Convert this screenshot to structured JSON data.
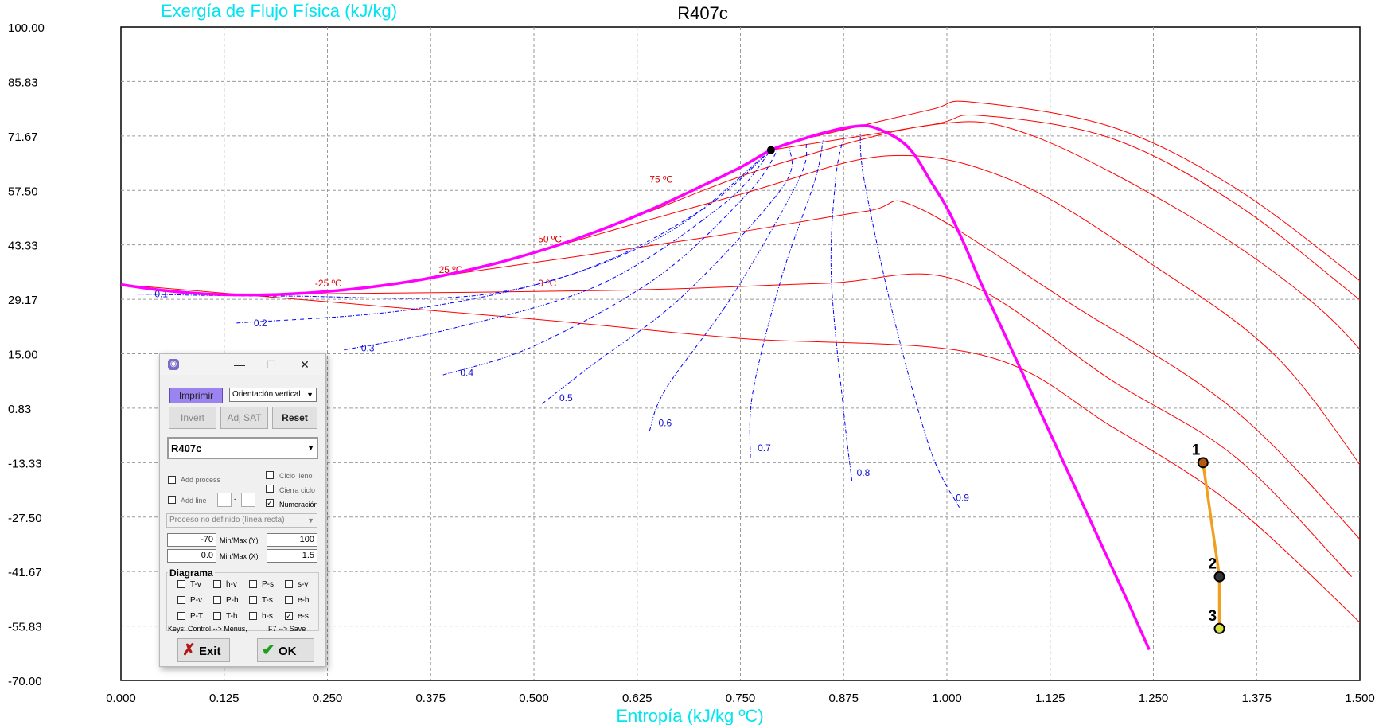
{
  "chart_data": {
    "type": "line",
    "title": "R407c",
    "ylabel": "Exergía de Flujo Física  (kJ/kg)",
    "xlabel": "Entropía (kJ/kg ºC)",
    "xlim": [
      0.0,
      1.5
    ],
    "ylim": [
      -70,
      100
    ],
    "xticks": [
      "0.000",
      "0.125",
      "0.250",
      "0.375",
      "0.500",
      "0.625",
      "0.750",
      "0.875",
      "1.000",
      "1.125",
      "1.250",
      "1.375",
      "1.500"
    ],
    "yticks": [
      "100.00",
      "85.83",
      "71.67",
      "57.50",
      "43.33",
      "29.17",
      "15.00",
      "0.83",
      "-13.33",
      "-27.50",
      "-41.67",
      "-55.83",
      "-70.00"
    ],
    "grid": true,
    "dome_color": "#ff00ff",
    "isotherm_color": "#ff0000",
    "quality_color": "#0000ff",
    "process_color": "#f0a020",
    "saturation_dome": [
      [
        0.0,
        33.0
      ],
      [
        0.05,
        31.5
      ],
      [
        0.1,
        30.6
      ],
      [
        0.15,
        30.3
      ],
      [
        0.2,
        30.5
      ],
      [
        0.25,
        31.2
      ],
      [
        0.3,
        32.3
      ],
      [
        0.35,
        33.8
      ],
      [
        0.4,
        35.8
      ],
      [
        0.45,
        38.3
      ],
      [
        0.5,
        41.3
      ],
      [
        0.55,
        44.8
      ],
      [
        0.6,
        48.8
      ],
      [
        0.65,
        53.3
      ],
      [
        0.7,
        58.3
      ],
      [
        0.75,
        63.5
      ],
      [
        0.787,
        68.0
      ],
      [
        0.82,
        70.5
      ],
      [
        0.86,
        73.0
      ],
      [
        0.89,
        74.2
      ],
      [
        0.91,
        74.0
      ],
      [
        0.94,
        71.0
      ],
      [
        0.96,
        67.0
      ],
      [
        0.98,
        60.0
      ],
      [
        1.0,
        53.0
      ],
      [
        1.02,
        44.0
      ],
      [
        1.04,
        34.0
      ],
      [
        1.07,
        20.0
      ],
      [
        1.1,
        6.0
      ],
      [
        1.13,
        -8.0
      ],
      [
        1.16,
        -22.0
      ],
      [
        1.19,
        -36.0
      ],
      [
        1.22,
        -50.0
      ],
      [
        1.245,
        -62.0
      ]
    ],
    "critical_point": [
      0.787,
      68.0
    ],
    "isotherms": [
      {
        "label": "-25 ºC",
        "label_at": [
          0.235,
          32.5
        ],
        "points": [
          [
            0.0,
            33.0
          ],
          [
            0.5,
            24.0
          ],
          [
            0.75,
            19.0
          ],
          [
            1.04,
            14.8
          ],
          [
            1.2,
            -4
          ],
          [
            1.35,
            -25
          ],
          [
            1.51,
            -57
          ]
        ]
      },
      {
        "label": "0 ºC",
        "label_at": [
          0.505,
          32.5
        ],
        "points": [
          [
            0.2,
            30.5
          ],
          [
            0.6,
            31.5
          ],
          [
            0.85,
            33.3
          ],
          [
            1.015,
            34.0
          ],
          [
            1.2,
            8
          ],
          [
            1.35,
            -12
          ],
          [
            1.49,
            -43
          ]
        ]
      },
      {
        "label": "25 ºC",
        "label_at": [
          0.385,
          36.0
        ],
        "points": [
          [
            0.38,
            35.0
          ],
          [
            0.7,
            45.0
          ],
          [
            0.9,
            52.0
          ],
          [
            0.965,
            53.0
          ],
          [
            1.15,
            28
          ],
          [
            1.35,
            0
          ],
          [
            1.52,
            -38
          ]
        ]
      },
      {
        "label": "50 ºC",
        "label_at": [
          0.505,
          44.0
        ],
        "points": [
          [
            0.5,
            41.3
          ],
          [
            0.75,
            56.5
          ],
          [
            0.93,
            66.5
          ],
          [
            1.08,
            60
          ],
          [
            1.25,
            38
          ],
          [
            1.4,
            14
          ],
          [
            1.52,
            -20
          ]
        ]
      },
      {
        "label": "75 ºC",
        "label_at": [
          0.64,
          59.5
        ],
        "points": [
          [
            0.64,
            52.0
          ],
          [
            0.79,
            64.0
          ],
          [
            0.98,
            74.5
          ],
          [
            1.1,
            72
          ],
          [
            1.3,
            50
          ],
          [
            1.45,
            27
          ],
          [
            1.54,
            6
          ]
        ]
      },
      {
        "label": "",
        "label_at": [
          0.0,
          0.0
        ],
        "points": [
          [
            0.787,
            68.0
          ],
          [
            0.98,
            74.5
          ],
          [
            1.04,
            77.0
          ],
          [
            1.2,
            71
          ],
          [
            1.35,
            54
          ],
          [
            1.5,
            29
          ],
          [
            1.54,
            22
          ]
        ]
      },
      {
        "label": "",
        "label_at": [
          0.0,
          0.0
        ],
        "points": [
          [
            0.84,
            71.5
          ],
          [
            0.98,
            78.5
          ],
          [
            1.03,
            80.5
          ],
          [
            1.2,
            74
          ],
          [
            1.35,
            58
          ],
          [
            1.5,
            34
          ],
          [
            1.54,
            27
          ]
        ]
      }
    ],
    "quality_lines": [
      {
        "label": "0.1",
        "label_at": [
          0.035,
          30.5
        ],
        "points": [
          [
            0.02,
            30.5
          ],
          [
            0.2,
            30.0
          ],
          [
            0.45,
            30.7
          ],
          [
            0.65,
            45
          ],
          [
            0.787,
            68.0
          ]
        ]
      },
      {
        "label": "0.2",
        "label_at": [
          0.155,
          23.0
        ],
        "points": [
          [
            0.14,
            23.0
          ],
          [
            0.35,
            26.5
          ],
          [
            0.55,
            36
          ],
          [
            0.7,
            52
          ],
          [
            0.787,
            68.0
          ]
        ]
      },
      {
        "label": "0.3",
        "label_at": [
          0.285,
          16.5
        ],
        "points": [
          [
            0.27,
            16.0
          ],
          [
            0.4,
            21.5
          ],
          [
            0.58,
            33
          ],
          [
            0.73,
            54
          ],
          [
            0.787,
            68.0
          ]
        ]
      },
      {
        "label": "0.4",
        "label_at": [
          0.405,
          10.0
        ],
        "points": [
          [
            0.39,
            9.5
          ],
          [
            0.5,
            17
          ],
          [
            0.65,
            35
          ],
          [
            0.76,
            57
          ],
          [
            0.795,
            68.0
          ]
        ]
      },
      {
        "label": "0.5",
        "label_at": [
          0.525,
          3.5
        ],
        "points": [
          [
            0.51,
            2.0
          ],
          [
            0.57,
            12
          ],
          [
            0.68,
            30
          ],
          [
            0.8,
            58
          ],
          [
            0.81,
            68.5
          ]
        ]
      },
      {
        "label": "0.6",
        "label_at": [
          0.645,
          -3.0
        ],
        "points": [
          [
            0.64,
            -5.0
          ],
          [
            0.66,
            6
          ],
          [
            0.74,
            30
          ],
          [
            0.82,
            60
          ],
          [
            0.83,
            69.5
          ]
        ]
      },
      {
        "label": "0.7",
        "label_at": [
          0.765,
          -9.5
        ],
        "points": [
          [
            0.762,
            -12.0
          ],
          [
            0.765,
            5
          ],
          [
            0.8,
            35
          ],
          [
            0.84,
            60
          ],
          [
            0.85,
            70.5
          ]
        ]
      },
      {
        "label": "0.8",
        "label_at": [
          0.885,
          -16.0
        ],
        "points": [
          [
            0.885,
            -18.0
          ],
          [
            0.875,
            0
          ],
          [
            0.86,
            35
          ],
          [
            0.865,
            60
          ],
          [
            0.875,
            71.5
          ]
        ]
      },
      {
        "label": "0.9",
        "label_at": [
          1.005,
          -22.5
        ],
        "points": [
          [
            1.015,
            -25.0
          ],
          [
            0.98,
            -10
          ],
          [
            0.935,
            25
          ],
          [
            0.9,
            60
          ],
          [
            0.895,
            72.5
          ]
        ]
      }
    ],
    "process_points": [
      {
        "label": "1",
        "x": 1.31,
        "y": -13.33,
        "color": "#b55a10"
      },
      {
        "label": "2",
        "x": 1.33,
        "y": -43.0,
        "color": "#333333"
      },
      {
        "label": "3",
        "x": 1.33,
        "y": -56.5,
        "color": "#d8e040"
      }
    ]
  },
  "dialog": {
    "icon": "app-logo-icon",
    "minimize": "—",
    "maximize": "☐",
    "close": "✕",
    "print_label": "Imprimir",
    "orientation_value": "Orientación vertical",
    "invert_label": "Invert",
    "adjsat_label": "Adj SAT",
    "reset_label": "Reset",
    "fluid_value": "R407c",
    "add_process_label": "Add process",
    "add_line_label": "Add line",
    "line_sep": "-",
    "ciclo_lleno_label": "Ciclo lleno",
    "cierra_ciclo_label": "Cierra ciclo",
    "numeracion_label": "Numeración",
    "process_type_value": "Proceso no definido (línea recta)",
    "min_y": "-70",
    "minmax_y_label": "Min/Max (Y)",
    "max_y": "100",
    "min_x": "0.0",
    "minmax_x_label": "Min/Max (X)",
    "max_x": "1.5",
    "diagram_group_label": "Diagrama",
    "diagrams": [
      {
        "label": "T-v",
        "checked": false
      },
      {
        "label": "h-v",
        "checked": false
      },
      {
        "label": "P-s",
        "checked": false
      },
      {
        "label": "s-v",
        "checked": false
      },
      {
        "label": "P-v",
        "checked": false
      },
      {
        "label": "P-h",
        "checked": false
      },
      {
        "label": "T-s",
        "checked": false
      },
      {
        "label": "e-h",
        "checked": false
      },
      {
        "label": "P-T",
        "checked": false
      },
      {
        "label": "T-h",
        "checked": false
      },
      {
        "label": "h-s",
        "checked": false
      },
      {
        "label": "e-s",
        "checked": true
      }
    ],
    "keys_hint": "Keys: Control --> Menus,",
    "save_hint": "F7 --> Save",
    "exit_label": "Exit",
    "ok_label": "OK"
  }
}
